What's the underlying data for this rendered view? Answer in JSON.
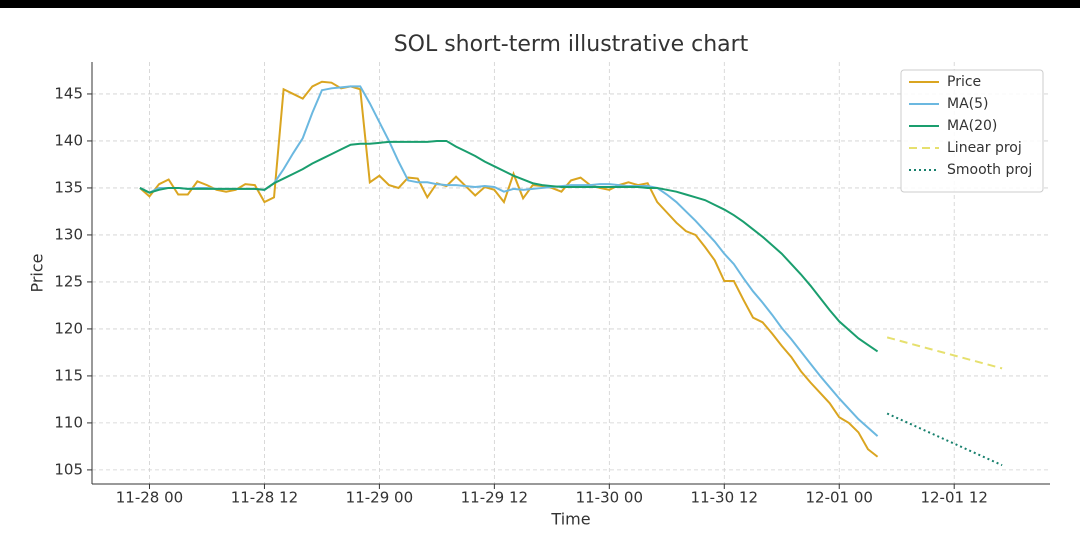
{
  "chart_data": {
    "type": "line",
    "title": "SOL short-term illustrative chart",
    "xlabel": "Time",
    "ylabel": "Price",
    "x": [
      "11-27 23",
      "11-28 00",
      "11-28 01",
      "11-28 02",
      "11-28 03",
      "11-28 04",
      "11-28 05",
      "11-28 06",
      "11-28 07",
      "11-28 08",
      "11-28 09",
      "11-28 10",
      "11-28 11",
      "11-28 12",
      "11-28 13",
      "11-28 14",
      "11-28 15",
      "11-28 16",
      "11-28 17",
      "11-28 18",
      "11-28 19",
      "11-28 20",
      "11-28 21",
      "11-28 22",
      "11-28 23",
      "11-29 00",
      "11-29 01",
      "11-29 02",
      "11-29 03",
      "11-29 04",
      "11-29 05",
      "11-29 06",
      "11-29 07",
      "11-29 08",
      "11-29 09",
      "11-29 10",
      "11-29 11",
      "11-29 12",
      "11-29 13",
      "11-29 14",
      "11-29 15",
      "11-29 16",
      "11-29 17",
      "11-29 18",
      "11-29 19",
      "11-29 20",
      "11-29 21",
      "11-29 22",
      "11-29 23",
      "11-30 00",
      "11-30 01",
      "11-30 02",
      "11-30 03",
      "11-30 04",
      "11-30 05",
      "11-30 06",
      "11-30 07",
      "11-30 08",
      "11-30 09",
      "11-30 10",
      "11-30 11",
      "11-30 12",
      "11-30 13",
      "11-30 14",
      "11-30 15",
      "11-30 16",
      "11-30 17",
      "11-30 18",
      "11-30 19",
      "11-30 20",
      "11-30 21",
      "11-30 22",
      "11-30 23",
      "12-01 00",
      "12-01 01",
      "12-01 02",
      "12-01 03",
      "12-01 04"
    ],
    "series": [
      {
        "name": "Price",
        "color": "#daa520",
        "dash": "solid",
        "values": [
          135,
          134.1,
          135.4,
          135.9,
          134.3,
          134.3,
          135.7,
          135.3,
          134.8,
          134.6,
          134.8,
          135.4,
          135.3,
          133.5,
          134,
          145.5,
          145,
          144.5,
          145.8,
          146.3,
          146.2,
          145.6,
          145.8,
          145.5,
          135.6,
          136.3,
          135.3,
          135,
          136.1,
          136,
          134,
          135.5,
          135.2,
          136.2,
          135.2,
          134.2,
          135.1,
          134.8,
          133.5,
          136.5,
          133.9,
          135.3,
          135.2,
          135,
          134.6,
          135.8,
          136.1,
          135.3,
          135,
          134.8,
          135.3,
          135.6,
          135.3,
          135.5,
          133.5,
          132.4,
          131.3,
          130.4,
          130,
          128.7,
          127.3,
          125.1,
          125.1,
          123.1,
          121.2,
          120.7,
          119.5,
          118.2,
          117,
          115.5,
          114.3,
          113.2,
          112.1,
          110.6,
          110,
          109,
          107.2,
          106.4
        ]
      },
      {
        "name": "MA(5)",
        "color": "#6bb8e0",
        "dash": "solid",
        "values": [
          135,
          134.5,
          135,
          135,
          135,
          134.9,
          135,
          135,
          134.9,
          134.9,
          134.9,
          134.9,
          134.9,
          134.8,
          135.5,
          137,
          138.7,
          140.3,
          143,
          145.4,
          145.6,
          145.7,
          145.8,
          145.8,
          144,
          142,
          140,
          137.8,
          135.8,
          135.6,
          135.6,
          135.4,
          135.3,
          135.3,
          135.2,
          135.1,
          135.2,
          135.1,
          134.6,
          134.9,
          134.8,
          134.9,
          135,
          135.1,
          135.2,
          135.3,
          135.3,
          135.3,
          135.4,
          135.4,
          135.3,
          135.2,
          135.2,
          135.2,
          135,
          134.3,
          133.5,
          132.5,
          131.5,
          130.4,
          129.3,
          128,
          126.9,
          125.4,
          124,
          122.8,
          121.5,
          120.1,
          118.9,
          117.6,
          116.3,
          115,
          113.8,
          112.6,
          111.5,
          110.4,
          109.5,
          108.6
        ]
      },
      {
        "name": "MA(20)",
        "color": "#1a9e6e",
        "dash": "solid",
        "values": [
          135,
          134.5,
          134.8,
          135,
          135,
          134.9,
          134.9,
          134.9,
          134.9,
          134.9,
          134.9,
          134.9,
          134.9,
          134.8,
          135.5,
          136,
          136.5,
          137,
          137.6,
          138.1,
          138.6,
          139.1,
          139.6,
          139.7,
          139.7,
          139.8,
          139.9,
          139.9,
          139.9,
          139.9,
          139.9,
          140,
          140,
          139.4,
          138.9,
          138.4,
          137.8,
          137.3,
          136.8,
          136.3,
          135.9,
          135.5,
          135.3,
          135.2,
          135.1,
          135.1,
          135.1,
          135.1,
          135.1,
          135.1,
          135.1,
          135.1,
          135.1,
          135,
          135,
          134.8,
          134.6,
          134.3,
          134,
          133.7,
          133.2,
          132.7,
          132.1,
          131.4,
          130.6,
          129.8,
          128.9,
          128,
          126.9,
          125.8,
          124.6,
          123.3,
          122,
          120.8,
          119.9,
          119,
          118.3,
          117.6
        ]
      },
      {
        "name": "Linear proj",
        "color": "#e6e06e",
        "dash": "dashed",
        "x": [
          "12-01 05",
          "12-01 17"
        ],
        "values": [
          119.1,
          115.8
        ]
      },
      {
        "name": "Smooth proj",
        "color": "#17806d",
        "dash": "dotted",
        "x": [
          "12-01 05",
          "12-01 17"
        ],
        "values": [
          111,
          105.5
        ]
      }
    ],
    "xlim": [
      "11-27 18",
      "12-01 22"
    ],
    "xticks": [
      "11-28 00",
      "11-28 12",
      "11-29 00",
      "11-29 12",
      "11-30 00",
      "11-30 12",
      "12-01 00",
      "12-01 12"
    ],
    "ylim": [
      103.5,
      148.4
    ],
    "yticks": [
      105,
      110,
      115,
      120,
      125,
      130,
      135,
      140,
      145
    ],
    "grid": true,
    "legend": "upper right"
  }
}
